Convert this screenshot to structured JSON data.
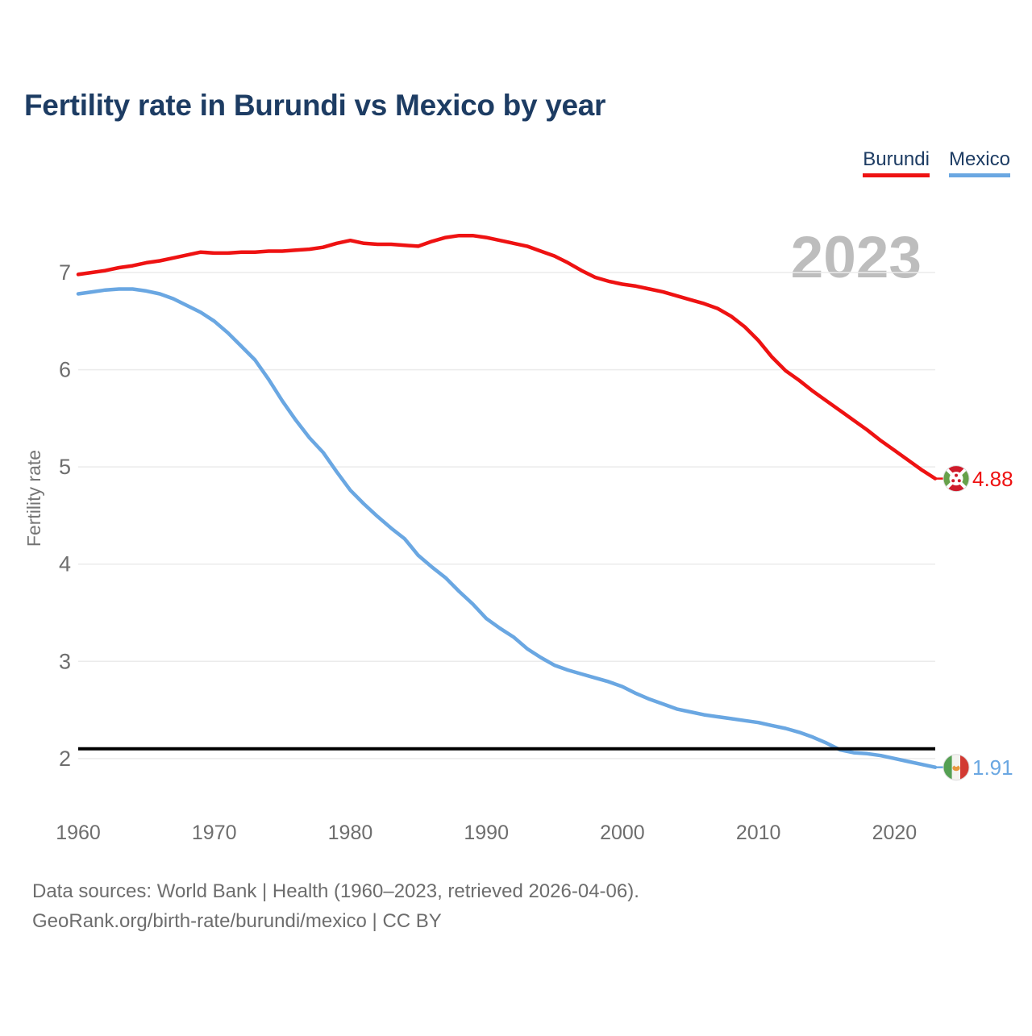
{
  "page": {
    "title": "Fertility rate in Burundi vs Mexico by year",
    "watermark": "2023",
    "footer": {
      "line1": "Data sources: World Bank | Health (1960–2023, retrieved 2026-04-06).",
      "line2": "GeoRank.org/birth-rate/burundi/mexico | CC BY"
    }
  },
  "legend": {
    "items": [
      {
        "label": "Burundi",
        "color": "#ee1212"
      },
      {
        "label": "Mexico",
        "color": "#6aa7e2"
      }
    ]
  },
  "chart_data": {
    "type": "line",
    "title": "Fertility rate in Burundi vs Mexico by year",
    "ylabel": "Fertility rate",
    "xlabel": "",
    "grid": "horizontal",
    "legend_position": "top-right",
    "watermark": "2023",
    "xlim": [
      1960,
      2023
    ],
    "ylim": [
      1.6,
      7.6
    ],
    "yticks": [
      2,
      3,
      4,
      5,
      6,
      7
    ],
    "xticks": [
      1960,
      1970,
      1980,
      1990,
      2000,
      2010,
      2020
    ],
    "reference_line": {
      "value": 2.1,
      "color": "#000000"
    },
    "x": [
      1960,
      1961,
      1962,
      1963,
      1964,
      1965,
      1966,
      1967,
      1968,
      1969,
      1970,
      1971,
      1972,
      1973,
      1974,
      1975,
      1976,
      1977,
      1978,
      1979,
      1980,
      1981,
      1982,
      1983,
      1984,
      1985,
      1986,
      1987,
      1988,
      1989,
      1990,
      1991,
      1992,
      1993,
      1994,
      1995,
      1996,
      1997,
      1998,
      1999,
      2000,
      2001,
      2002,
      2003,
      2004,
      2005,
      2006,
      2007,
      2008,
      2009,
      2010,
      2011,
      2012,
      2013,
      2014,
      2015,
      2016,
      2017,
      2018,
      2019,
      2020,
      2021,
      2022,
      2023
    ],
    "series": [
      {
        "name": "Burundi",
        "color": "#ee1212",
        "end_value": 4.88,
        "end_label": "4.88",
        "flag": "burundi",
        "values": [
          6.98,
          7.0,
          7.02,
          7.05,
          7.07,
          7.1,
          7.12,
          7.15,
          7.18,
          7.21,
          7.2,
          7.2,
          7.21,
          7.21,
          7.22,
          7.22,
          7.23,
          7.24,
          7.26,
          7.3,
          7.33,
          7.3,
          7.29,
          7.29,
          7.28,
          7.27,
          7.32,
          7.36,
          7.38,
          7.38,
          7.36,
          7.33,
          7.3,
          7.27,
          7.22,
          7.17,
          7.1,
          7.02,
          6.95,
          6.91,
          6.88,
          6.86,
          6.83,
          6.8,
          6.76,
          6.72,
          6.68,
          6.63,
          6.55,
          6.44,
          6.3,
          6.13,
          5.99,
          5.89,
          5.78,
          5.68,
          5.58,
          5.48,
          5.38,
          5.27,
          5.17,
          5.07,
          4.97,
          4.88
        ]
      },
      {
        "name": "Mexico",
        "color": "#6aa7e2",
        "end_value": 1.91,
        "end_label": "1.91",
        "flag": "mexico",
        "values": [
          6.78,
          6.8,
          6.82,
          6.83,
          6.83,
          6.81,
          6.78,
          6.73,
          6.66,
          6.59,
          6.5,
          6.38,
          6.24,
          6.1,
          5.9,
          5.68,
          5.48,
          5.3,
          5.15,
          4.95,
          4.76,
          4.62,
          4.49,
          4.37,
          4.26,
          4.09,
          3.97,
          3.86,
          3.72,
          3.59,
          3.44,
          3.34,
          3.25,
          3.13,
          3.04,
          2.96,
          2.91,
          2.87,
          2.83,
          2.79,
          2.74,
          2.67,
          2.61,
          2.56,
          2.51,
          2.48,
          2.45,
          2.43,
          2.41,
          2.39,
          2.37,
          2.34,
          2.31,
          2.27,
          2.22,
          2.16,
          2.09,
          2.06,
          2.05,
          2.03,
          2.0,
          1.97,
          1.94,
          1.91
        ]
      }
    ]
  }
}
